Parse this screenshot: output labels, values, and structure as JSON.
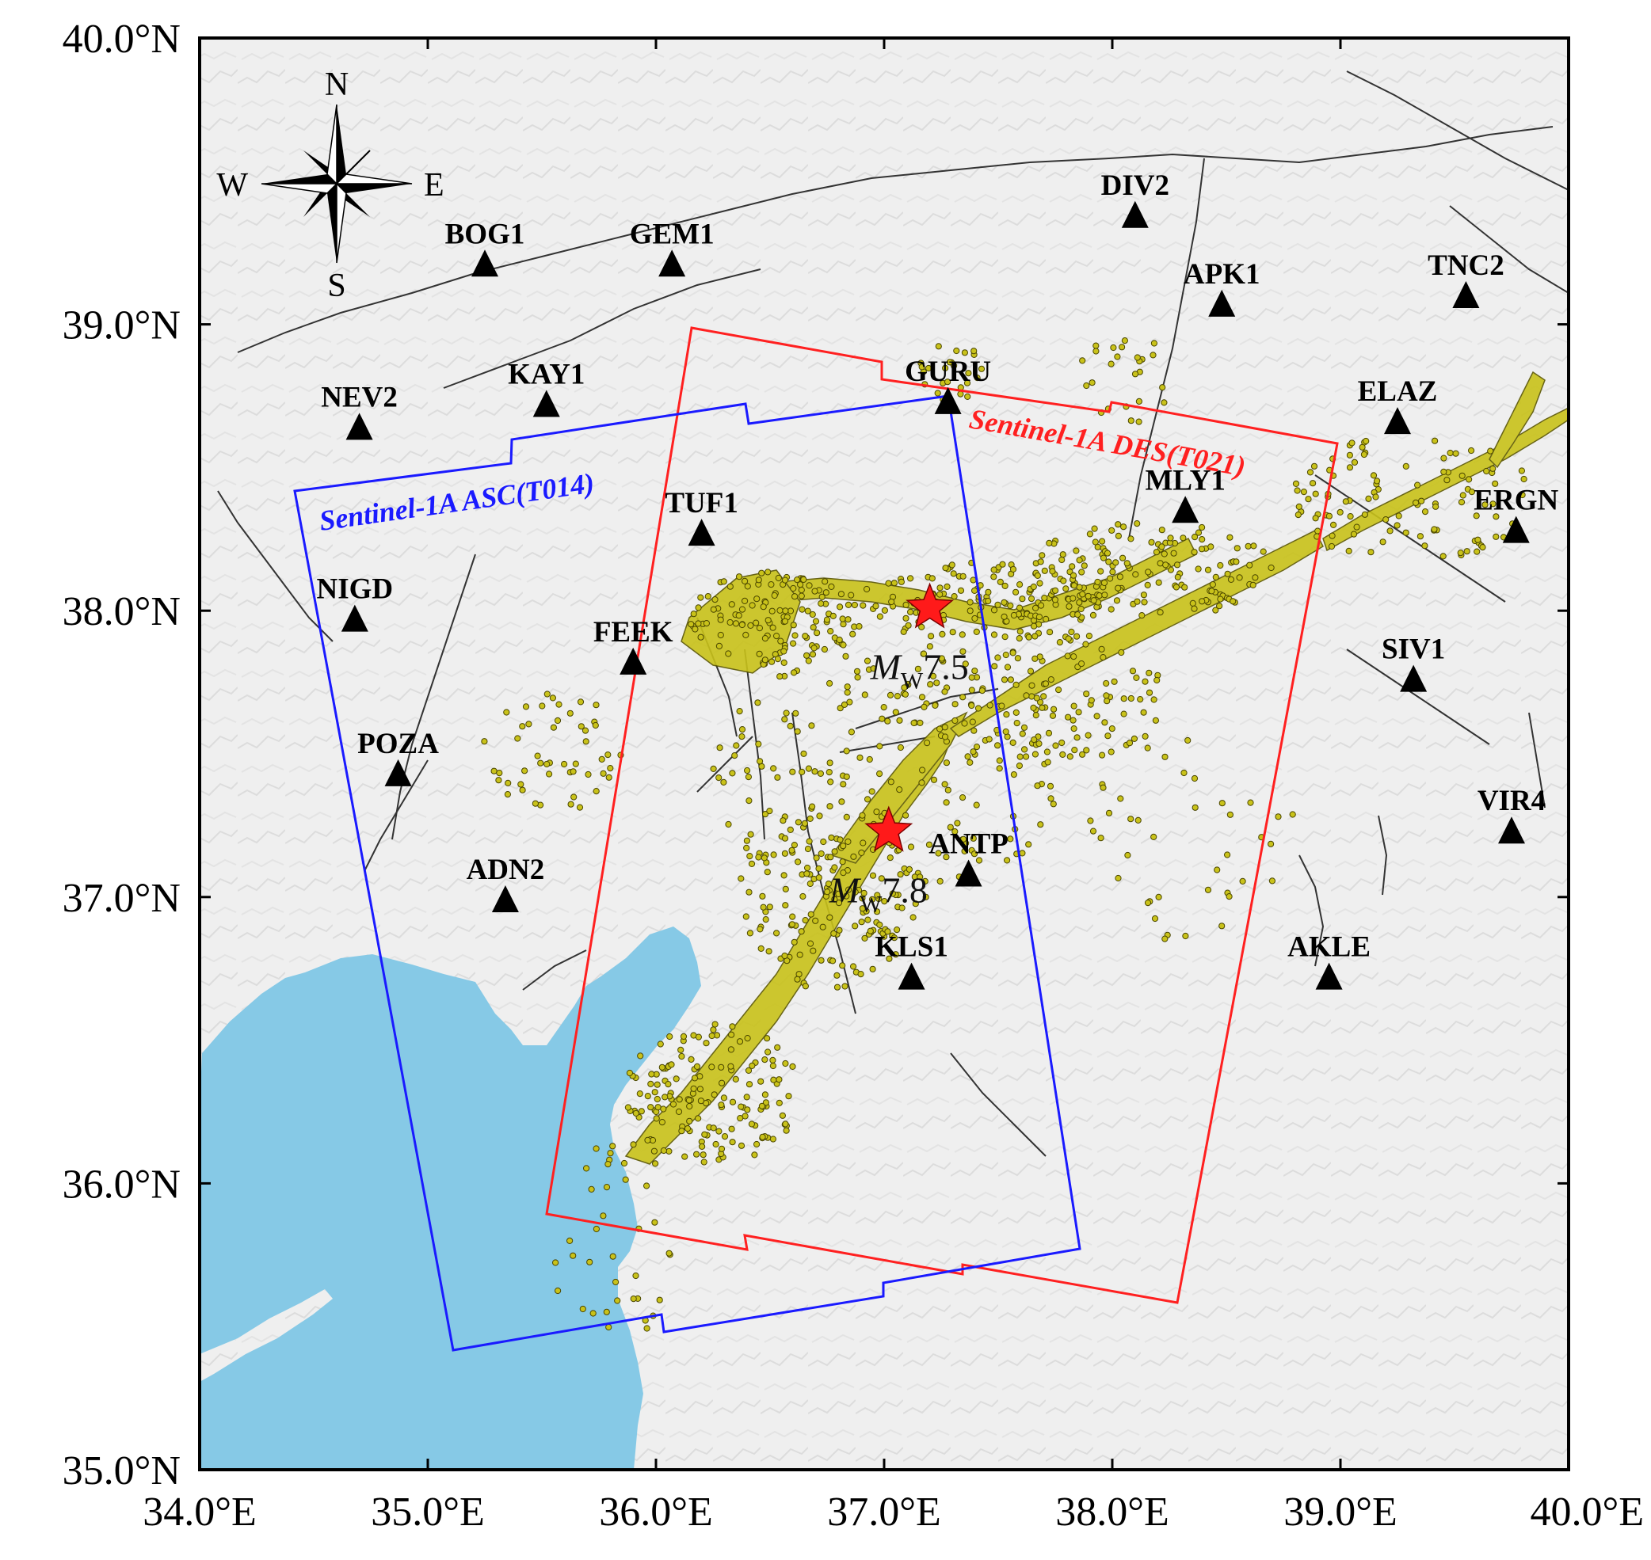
{
  "map": {
    "extent": {
      "lon_min": 34.0,
      "lon_max": 40.0,
      "lat_min": 35.0,
      "lat_max": 40.0
    },
    "x_ticks": [
      {
        "value": 34.0,
        "label": "34.0°E"
      },
      {
        "value": 35.0,
        "label": "35.0°E"
      },
      {
        "value": 36.0,
        "label": "36.0°E"
      },
      {
        "value": 37.0,
        "label": "37.0°E"
      },
      {
        "value": 38.0,
        "label": "38.0°E"
      },
      {
        "value": 39.0,
        "label": "39.0°E"
      },
      {
        "value": 40.0,
        "label": "40.0°E"
      }
    ],
    "y_ticks": [
      {
        "value": 35.0,
        "label": "35.0°N"
      },
      {
        "value": 36.0,
        "label": "36.0°N"
      },
      {
        "value": 37.0,
        "label": "37.0°N"
      },
      {
        "value": 38.0,
        "label": "38.0°N"
      },
      {
        "value": 39.0,
        "label": "39.0°N"
      },
      {
        "value": 40.0,
        "label": "40.0°N"
      }
    ],
    "colors": {
      "sea": "#86c9e6",
      "land": "#efefef",
      "station": "#000000",
      "aftershock": "#c9c21a",
      "epicenter": "#ff1a1a",
      "ascending_swath": "#1a1aff",
      "descending_swath": "#ff2020",
      "fault": "#333333"
    }
  },
  "compass": {
    "north": "N",
    "south": "S",
    "east": "E",
    "west": "W"
  },
  "stations": [
    {
      "name": "BOG1",
      "lon": 35.25,
      "lat": 39.2
    },
    {
      "name": "GEM1",
      "lon": 36.07,
      "lat": 39.2
    },
    {
      "name": "DIV2",
      "lon": 38.1,
      "lat": 39.37
    },
    {
      "name": "APK1",
      "lon": 38.48,
      "lat": 39.06
    },
    {
      "name": "TNC2",
      "lon": 39.55,
      "lat": 39.09
    },
    {
      "name": "NEV2",
      "lon": 34.7,
      "lat": 38.63
    },
    {
      "name": "KAY1",
      "lon": 35.52,
      "lat": 38.71
    },
    {
      "name": "GURU",
      "lon": 37.28,
      "lat": 38.72
    },
    {
      "name": "ELAZ",
      "lon": 39.25,
      "lat": 38.65
    },
    {
      "name": "TUF1",
      "lon": 36.2,
      "lat": 38.26
    },
    {
      "name": "MLY1",
      "lon": 38.32,
      "lat": 38.34
    },
    {
      "name": "ERGN",
      "lon": 39.77,
      "lat": 38.27
    },
    {
      "name": "NIGD",
      "lon": 34.68,
      "lat": 37.96
    },
    {
      "name": "FEEK",
      "lon": 35.9,
      "lat": 37.81
    },
    {
      "name": "SIV1",
      "lon": 39.32,
      "lat": 37.75
    },
    {
      "name": "POZA",
      "lon": 34.87,
      "lat": 37.42
    },
    {
      "name": "VIR4",
      "lon": 39.75,
      "lat": 37.22
    },
    {
      "name": "ANTP",
      "lon": 37.37,
      "lat": 37.07
    },
    {
      "name": "ADN2",
      "lon": 35.34,
      "lat": 36.98
    },
    {
      "name": "KLS1",
      "lon": 37.12,
      "lat": 36.71
    },
    {
      "name": "AKLE",
      "lon": 38.95,
      "lat": 36.71
    }
  ],
  "epicenters": [
    {
      "lon": 37.2,
      "lat": 38.01,
      "mag_symbol": "M",
      "mag_sub": "W",
      "mag_value": "7.5"
    },
    {
      "lon": 37.02,
      "lat": 37.23,
      "mag_symbol": "M",
      "mag_sub": "W",
      "mag_value": "7.8"
    }
  ],
  "swaths": [
    {
      "name": "ascending",
      "label": "Sentinel-1A ASC(T014)"
    },
    {
      "name": "descending",
      "label": "Sentinel-1A DES(T021)"
    }
  ]
}
